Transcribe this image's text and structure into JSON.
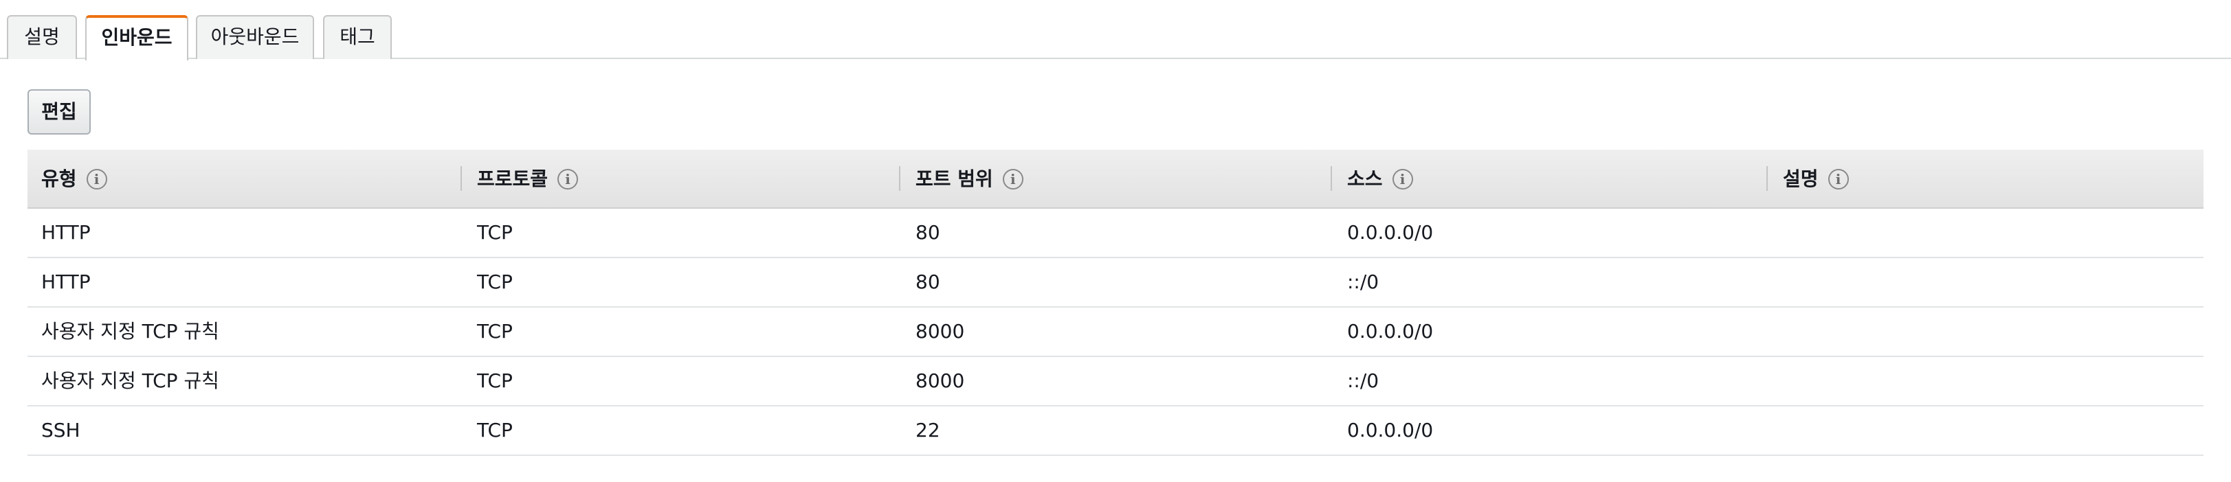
{
  "tabs": [
    {
      "label": "설명",
      "active": false
    },
    {
      "label": "인바운드",
      "active": true
    },
    {
      "label": "아웃바운드",
      "active": false
    },
    {
      "label": "태그",
      "active": false
    }
  ],
  "toolbar": {
    "edit_label": "편집"
  },
  "table": {
    "columns": [
      {
        "label": "유형"
      },
      {
        "label": "프로토콜"
      },
      {
        "label": "포트 범위"
      },
      {
        "label": "소스"
      },
      {
        "label": "설명"
      }
    ],
    "info_glyph": "i",
    "rows": [
      {
        "type": "HTTP",
        "protocol": "TCP",
        "port": "80",
        "source": "0.0.0.0/0",
        "description": ""
      },
      {
        "type": "HTTP",
        "protocol": "TCP",
        "port": "80",
        "source": "::/0",
        "description": ""
      },
      {
        "type": "사용자 지정 TCP 규칙",
        "protocol": "TCP",
        "port": "8000",
        "source": "0.0.0.0/0",
        "description": ""
      },
      {
        "type": "사용자 지정 TCP 규칙",
        "protocol": "TCP",
        "port": "8000",
        "source": "::/0",
        "description": ""
      },
      {
        "type": "SSH",
        "protocol": "TCP",
        "port": "22",
        "source": "0.0.0.0/0",
        "description": ""
      }
    ]
  },
  "colors": {
    "active_tab_accent": "#ec7211",
    "header_bg": "#e8e8e8",
    "row_divider": "#e1e4e6"
  }
}
